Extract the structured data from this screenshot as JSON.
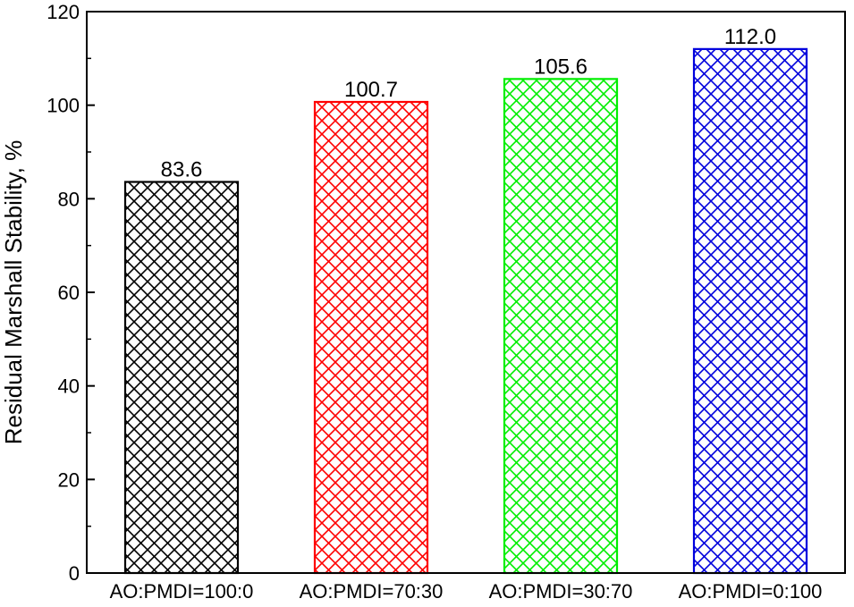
{
  "chart_data": {
    "type": "bar",
    "title": "",
    "xlabel": "",
    "ylabel": "Residual Marshall Stability, %",
    "ylim": [
      0,
      120
    ],
    "yticks": [
      0,
      20,
      40,
      60,
      80,
      100,
      120
    ],
    "grid": false,
    "categories": [
      "AO:PMDI=100:0",
      "AO:PMDI=70:30",
      "AO:PMDI=30:70",
      "AO:PMDI=0:100"
    ],
    "values": [
      83.6,
      100.7,
      105.6,
      112.0
    ],
    "value_labels": [
      "83.6",
      "100.7",
      "105.6",
      "112.0"
    ],
    "colors": [
      "#000000",
      "#ff0000",
      "#00ee00",
      "#0000dd"
    ],
    "fill_pattern": "crosshatch"
  }
}
